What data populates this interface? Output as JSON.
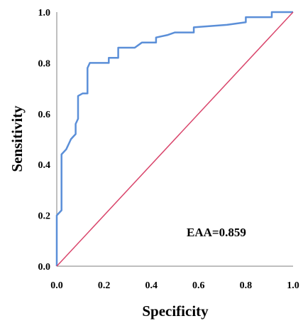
{
  "chart_data": {
    "type": "line",
    "xlabel": "Specificity",
    "ylabel": "Sensitivity",
    "xlim": [
      0,
      1
    ],
    "ylim": [
      0,
      1
    ],
    "x_ticks": [
      "0.0",
      "0.2",
      "0.4",
      "0.6",
      "0.8",
      "1.0"
    ],
    "y_ticks": [
      "0.0",
      "0.2",
      "0.4",
      "0.6",
      "0.8",
      "1.0"
    ],
    "annotation": "EAA=0.859",
    "grid": false,
    "series": [
      {
        "color": "#5b8fd8",
        "points": [
          [
            0,
            0
          ],
          [
            0,
            0.2
          ],
          [
            0.02,
            0.22
          ],
          [
            0.02,
            0.44
          ],
          [
            0.04,
            0.46
          ],
          [
            0.05,
            0.48
          ],
          [
            0.06,
            0.5
          ],
          [
            0.07,
            0.51
          ],
          [
            0.08,
            0.52
          ],
          [
            0.08,
            0.56
          ],
          [
            0.09,
            0.58
          ],
          [
            0.09,
            0.67
          ],
          [
            0.11,
            0.68
          ],
          [
            0.13,
            0.68
          ],
          [
            0.13,
            0.78
          ],
          [
            0.14,
            0.8
          ],
          [
            0.2,
            0.8
          ],
          [
            0.22,
            0.8
          ],
          [
            0.22,
            0.82
          ],
          [
            0.26,
            0.82
          ],
          [
            0.26,
            0.86
          ],
          [
            0.33,
            0.86
          ],
          [
            0.36,
            0.88
          ],
          [
            0.42,
            0.88
          ],
          [
            0.42,
            0.9
          ],
          [
            0.47,
            0.91
          ],
          [
            0.5,
            0.92
          ],
          [
            0.58,
            0.92
          ],
          [
            0.58,
            0.94
          ],
          [
            0.65,
            0.945
          ],
          [
            0.72,
            0.95
          ],
          [
            0.8,
            0.96
          ],
          [
            0.8,
            0.98
          ],
          [
            0.86,
            0.98
          ],
          [
            0.91,
            0.98
          ],
          [
            0.91,
            1.0
          ],
          [
            1.0,
            1.0
          ]
        ]
      },
      {
        "color": "#d9456b",
        "points": [
          [
            0,
            0
          ],
          [
            1,
            1
          ]
        ]
      }
    ]
  }
}
